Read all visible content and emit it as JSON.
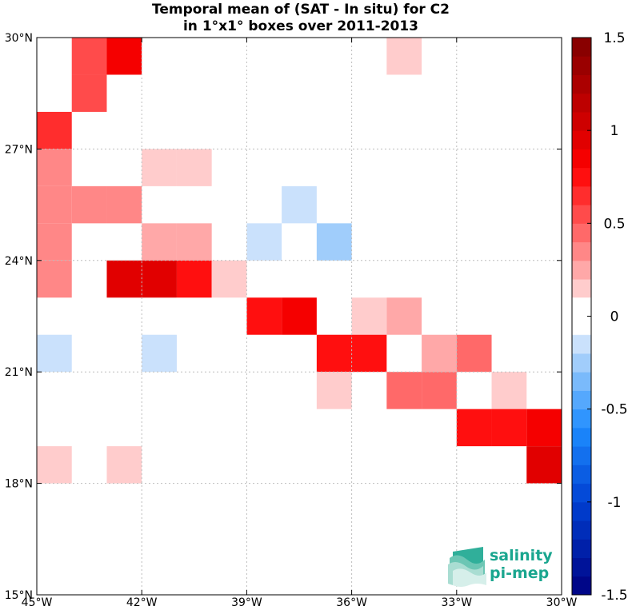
{
  "chart_data": {
    "type": "heatmap",
    "title": "Temporal mean of (SAT - In situ) for C2",
    "subtitle": "in 1°x1° boxes over 2011-2013",
    "x_ticks": [
      "45°W",
      "42°W",
      "39°W",
      "36°W",
      "33°W",
      "30°W"
    ],
    "y_ticks": [
      "30°N",
      "27°N",
      "24°N",
      "21°N",
      "18°N",
      "15°N"
    ],
    "xlim": [
      -45,
      -30
    ],
    "ylim": [
      15,
      30
    ],
    "colorbar": {
      "range": [
        -1.5,
        1.5
      ],
      "step": 0.1,
      "tick_labels": [
        "1.5",
        "1",
        "0.5",
        "0",
        "-0.5",
        "-1",
        "-1.5"
      ],
      "tick_values": [
        1.5,
        1,
        0.5,
        0,
        -0.5,
        -1,
        -1.5
      ]
    },
    "grid": true,
    "cells": [
      {
        "lon": -44,
        "lat": 29,
        "value": 0.5
      },
      {
        "lon": -43,
        "lat": 29,
        "value": 0.8
      },
      {
        "lon": -44,
        "lat": 28,
        "value": 0.5
      },
      {
        "lon": -35,
        "lat": 29,
        "value": 0.15
      },
      {
        "lon": -45,
        "lat": 27,
        "value": 0.65
      },
      {
        "lon": -45,
        "lat": 26,
        "value": 0.35
      },
      {
        "lon": -42,
        "lat": 26,
        "value": 0.15
      },
      {
        "lon": -41,
        "lat": 26,
        "value": 0.15
      },
      {
        "lon": -45,
        "lat": 25,
        "value": 0.35
      },
      {
        "lon": -44,
        "lat": 25,
        "value": 0.35
      },
      {
        "lon": -43,
        "lat": 25,
        "value": 0.35
      },
      {
        "lon": -38,
        "lat": 25,
        "value": -0.15
      },
      {
        "lon": -45,
        "lat": 24,
        "value": 0.35
      },
      {
        "lon": -42,
        "lat": 24,
        "value": 0.25
      },
      {
        "lon": -41,
        "lat": 24,
        "value": 0.25
      },
      {
        "lon": -39,
        "lat": 24,
        "value": -0.15
      },
      {
        "lon": -37,
        "lat": 24,
        "value": -0.25
      },
      {
        "lon": -45,
        "lat": 23,
        "value": 0.35
      },
      {
        "lon": -43,
        "lat": 23,
        "value": 0.9
      },
      {
        "lon": -42,
        "lat": 23,
        "value": 0.9
      },
      {
        "lon": -41,
        "lat": 23,
        "value": 0.75
      },
      {
        "lon": -40,
        "lat": 23,
        "value": 0.15
      },
      {
        "lon": -39,
        "lat": 22,
        "value": 0.75
      },
      {
        "lon": -38,
        "lat": 22,
        "value": 0.85
      },
      {
        "lon": -36,
        "lat": 22,
        "value": 0.15
      },
      {
        "lon": -35,
        "lat": 22,
        "value": 0.25
      },
      {
        "lon": -45,
        "lat": 21,
        "value": -0.15
      },
      {
        "lon": -42,
        "lat": 21,
        "value": -0.15
      },
      {
        "lon": -37,
        "lat": 21,
        "value": 0.75
      },
      {
        "lon": -36,
        "lat": 21,
        "value": 0.75
      },
      {
        "lon": -34,
        "lat": 21,
        "value": 0.25
      },
      {
        "lon": -33,
        "lat": 21,
        "value": 0.45
      },
      {
        "lon": -37,
        "lat": 20,
        "value": 0.15
      },
      {
        "lon": -35,
        "lat": 20,
        "value": 0.45
      },
      {
        "lon": -34,
        "lat": 20,
        "value": 0.45
      },
      {
        "lon": -32,
        "lat": 20,
        "value": 0.15
      },
      {
        "lon": -33,
        "lat": 19,
        "value": 0.75
      },
      {
        "lon": -32,
        "lat": 19,
        "value": 0.75
      },
      {
        "lon": -31,
        "lat": 19,
        "value": 0.85
      },
      {
        "lon": -45,
        "lat": 18,
        "value": 0.15
      },
      {
        "lon": -43,
        "lat": 18,
        "value": 0.15
      },
      {
        "lon": -31,
        "lat": 18,
        "value": 0.95
      }
    ]
  },
  "logo": {
    "line1": "salinity",
    "line2": "pi-mep"
  }
}
